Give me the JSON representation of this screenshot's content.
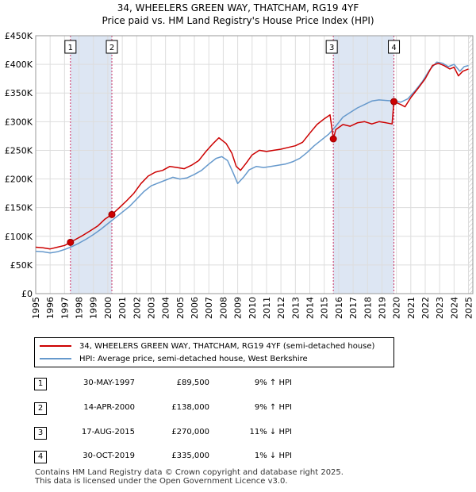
{
  "title_line1": "34, WHEELERS GREEN WAY, THATCHAM, RG19 4YF",
  "title_line2": "Price paid vs. HM Land Registry's House Price Index (HPI)",
  "colors": {
    "property": "#cc0000",
    "hpi": "#6699cc",
    "shade": "#dde6f3",
    "marker_line": "#cc3366",
    "grid": "#dddddd"
  },
  "chart_data": {
    "type": "line",
    "title": "Price paid vs. HM Land Registry's House Price Index (HPI)",
    "xlabel": "",
    "ylabel": "",
    "xlim": [
      1995,
      2025.3
    ],
    "ylim": [
      0,
      450000
    ],
    "yticks": [
      0,
      50000,
      100000,
      150000,
      200000,
      250000,
      300000,
      350000,
      400000,
      450000
    ],
    "ytick_labels": [
      "£0",
      "£50K",
      "£100K",
      "£150K",
      "£200K",
      "£250K",
      "£300K",
      "£350K",
      "£400K",
      "£450K"
    ],
    "xticks": [
      "1995",
      "1996",
      "1997",
      "1998",
      "1999",
      "2000",
      "2001",
      "2002",
      "2003",
      "2004",
      "2005",
      "2006",
      "2007",
      "2008",
      "2009",
      "2010",
      "2011",
      "2012",
      "2013",
      "2014",
      "2015",
      "2016",
      "2017",
      "2018",
      "2019",
      "2020",
      "2021",
      "2022",
      "2023",
      "2024",
      "2025"
    ],
    "grid": true,
    "series": [
      {
        "name": "34, WHEELERS GREEN WAY, THATCHAM, RG19 4YF (semi-detached house)",
        "color": "#cc0000",
        "points": [
          [
            1995.0,
            81000
          ],
          [
            1995.5,
            80000
          ],
          [
            1996.0,
            78000
          ],
          [
            1996.5,
            81000
          ],
          [
            1997.0,
            84000
          ],
          [
            1997.41,
            89500
          ],
          [
            1997.8,
            95000
          ],
          [
            1998.3,
            102000
          ],
          [
            1998.8,
            110000
          ],
          [
            1999.3,
            118000
          ],
          [
            1999.8,
            130000
          ],
          [
            2000.28,
            138000
          ],
          [
            2000.8,
            150000
          ],
          [
            2001.3,
            162000
          ],
          [
            2001.8,
            175000
          ],
          [
            2002.3,
            192000
          ],
          [
            2002.8,
            205000
          ],
          [
            2003.3,
            212000
          ],
          [
            2003.8,
            215000
          ],
          [
            2004.3,
            222000
          ],
          [
            2004.8,
            220000
          ],
          [
            2005.3,
            218000
          ],
          [
            2005.8,
            224000
          ],
          [
            2006.3,
            232000
          ],
          [
            2006.8,
            248000
          ],
          [
            2007.3,
            262000
          ],
          [
            2007.7,
            272000
          ],
          [
            2008.2,
            262000
          ],
          [
            2008.6,
            245000
          ],
          [
            2008.9,
            222000
          ],
          [
            2009.2,
            215000
          ],
          [
            2009.6,
            228000
          ],
          [
            2010.0,
            242000
          ],
          [
            2010.5,
            250000
          ],
          [
            2011.0,
            248000
          ],
          [
            2011.5,
            250000
          ],
          [
            2012.0,
            252000
          ],
          [
            2012.5,
            255000
          ],
          [
            2013.0,
            258000
          ],
          [
            2013.5,
            264000
          ],
          [
            2014.0,
            280000
          ],
          [
            2014.5,
            295000
          ],
          [
            2015.0,
            305000
          ],
          [
            2015.4,
            312000
          ],
          [
            2015.63,
            270000
          ],
          [
            2015.8,
            286000
          ],
          [
            2016.3,
            295000
          ],
          [
            2016.8,
            292000
          ],
          [
            2017.3,
            298000
          ],
          [
            2017.8,
            300000
          ],
          [
            2018.3,
            296000
          ],
          [
            2018.8,
            300000
          ],
          [
            2019.3,
            298000
          ],
          [
            2019.7,
            296000
          ],
          [
            2019.83,
            335000
          ],
          [
            2020.3,
            330000
          ],
          [
            2020.6,
            326000
          ],
          [
            2021.0,
            342000
          ],
          [
            2021.5,
            358000
          ],
          [
            2022.0,
            375000
          ],
          [
            2022.5,
            398000
          ],
          [
            2022.9,
            402000
          ],
          [
            2023.3,
            398000
          ],
          [
            2023.7,
            392000
          ],
          [
            2024.0,
            395000
          ],
          [
            2024.3,
            380000
          ],
          [
            2024.6,
            388000
          ],
          [
            2025.0,
            392000
          ]
        ]
      },
      {
        "name": "HPI: Average price, semi-detached house, West Berkshire",
        "color": "#6699cc",
        "points": [
          [
            1995.0,
            74000
          ],
          [
            1995.5,
            73000
          ],
          [
            1996.0,
            71000
          ],
          [
            1996.5,
            73000
          ],
          [
            1997.0,
            77000
          ],
          [
            1997.5,
            82000
          ],
          [
            1998.0,
            88000
          ],
          [
            1998.5,
            95000
          ],
          [
            1999.0,
            103000
          ],
          [
            1999.5,
            112000
          ],
          [
            2000.0,
            122000
          ],
          [
            2000.5,
            132000
          ],
          [
            2001.0,
            142000
          ],
          [
            2001.5,
            152000
          ],
          [
            2002.0,
            165000
          ],
          [
            2002.5,
            178000
          ],
          [
            2003.0,
            188000
          ],
          [
            2003.5,
            193000
          ],
          [
            2004.0,
            198000
          ],
          [
            2004.5,
            203000
          ],
          [
            2005.0,
            200000
          ],
          [
            2005.5,
            202000
          ],
          [
            2006.0,
            208000
          ],
          [
            2006.5,
            215000
          ],
          [
            2007.0,
            226000
          ],
          [
            2007.5,
            236000
          ],
          [
            2007.9,
            239000
          ],
          [
            2008.3,
            232000
          ],
          [
            2008.7,
            210000
          ],
          [
            2009.0,
            192000
          ],
          [
            2009.4,
            203000
          ],
          [
            2009.8,
            216000
          ],
          [
            2010.3,
            222000
          ],
          [
            2010.8,
            220000
          ],
          [
            2011.3,
            222000
          ],
          [
            2011.8,
            224000
          ],
          [
            2012.3,
            226000
          ],
          [
            2012.8,
            230000
          ],
          [
            2013.3,
            236000
          ],
          [
            2013.8,
            246000
          ],
          [
            2014.3,
            258000
          ],
          [
            2014.8,
            268000
          ],
          [
            2015.3,
            278000
          ],
          [
            2015.8,
            292000
          ],
          [
            2016.3,
            308000
          ],
          [
            2016.8,
            316000
          ],
          [
            2017.3,
            324000
          ],
          [
            2017.8,
            330000
          ],
          [
            2018.3,
            336000
          ],
          [
            2018.8,
            338000
          ],
          [
            2019.3,
            337000
          ],
          [
            2019.8,
            336000
          ],
          [
            2020.3,
            334000
          ],
          [
            2020.8,
            340000
          ],
          [
            2021.3,
            354000
          ],
          [
            2021.8,
            370000
          ],
          [
            2022.3,
            390000
          ],
          [
            2022.8,
            404000
          ],
          [
            2023.2,
            402000
          ],
          [
            2023.6,
            396000
          ],
          [
            2024.0,
            400000
          ],
          [
            2024.4,
            388000
          ],
          [
            2024.7,
            396000
          ],
          [
            2025.0,
            398000
          ]
        ]
      }
    ],
    "transactions": [
      {
        "label": "1",
        "x": 1997.41,
        "y": 89500
      },
      {
        "label": "2",
        "x": 2000.28,
        "y": 138000
      },
      {
        "label": "3",
        "x": 2015.63,
        "y": 270000
      },
      {
        "label": "4",
        "x": 2019.83,
        "y": 335000
      }
    ],
    "shaded_ranges": [
      [
        1997.41,
        2000.28
      ],
      [
        2015.63,
        2019.83
      ]
    ],
    "hatched_from": 2025.0
  },
  "legend": {
    "property_label": "34, WHEELERS GREEN WAY, THATCHAM, RG19 4YF (semi-detached house)",
    "hpi_label": "HPI: Average price, semi-detached house, West Berkshire"
  },
  "transactions_table": [
    {
      "num": "1",
      "date": "30-MAY-1997",
      "price": "£89,500",
      "hpi": "9% ↑ HPI"
    },
    {
      "num": "2",
      "date": "14-APR-2000",
      "price": "£138,000",
      "hpi": "9% ↑ HPI"
    },
    {
      "num": "3",
      "date": "17-AUG-2015",
      "price": "£270,000",
      "hpi": "11% ↓ HPI"
    },
    {
      "num": "4",
      "date": "30-OCT-2019",
      "price": "£335,000",
      "hpi": "1% ↓ HPI"
    }
  ],
  "footer_line1": "Contains HM Land Registry data © Crown copyright and database right 2025.",
  "footer_line2": "This data is licensed under the Open Government Licence v3.0."
}
